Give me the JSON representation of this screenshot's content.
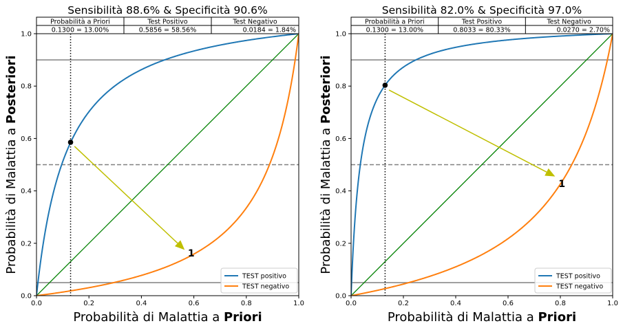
{
  "chart_data": [
    {
      "type": "line",
      "title": "Sensibilità 88.6%  &  Specificità 90.6%",
      "xlabel": {
        "prefix": "Probabilità di Malattia a ",
        "bold": "Priori"
      },
      "ylabel": {
        "prefix": "Probabilità di Malattia a ",
        "bold": "Posteriori"
      },
      "xlim": [
        0,
        1
      ],
      "ylim": [
        0,
        1
      ],
      "xticks": [
        "0.0",
        "0.2",
        "0.4",
        "0.6",
        "0.8",
        "1.0"
      ],
      "yticks": [
        "0.0",
        "0.2",
        "0.4",
        "0.6",
        "0.8",
        "1.0"
      ],
      "sensitivity": 0.886,
      "specificity": 0.906,
      "series": [
        {
          "name": "TEST positivo",
          "color": "#1f77b4"
        },
        {
          "name": "TEST negativo",
          "color": "#ff7f0e"
        }
      ],
      "diagonal_color": "#008000",
      "reference_lines": [
        {
          "y": 0.9,
          "style": "solid",
          "color": "#808080"
        },
        {
          "y": 0.5,
          "style": "dashed",
          "color": "#808080"
        },
        {
          "y": 0.05,
          "style": "solid",
          "color": "#808080"
        }
      ],
      "prior": 0.13,
      "point": {
        "x": 0.13,
        "y": 0.5856
      },
      "arrow": {
        "from": [
          0.145,
          0.57
        ],
        "to": [
          0.565,
          0.175
        ],
        "color": "#bfbf00",
        "label": "1",
        "label_at": [
          0.59,
          0.15
        ]
      },
      "legend_position": "lower-right",
      "table": {
        "headers": [
          "Probabilità a Priori",
          "Test Positivo",
          "Test Negativo"
        ],
        "values": [
          "0.1300 = 13.00%",
          "0.5856 = 58.56%",
          "0.0184 = 1.84%"
        ]
      }
    },
    {
      "type": "line",
      "title": "Sensibilità 82.0%  &  Specificità 97.0%",
      "xlabel": {
        "prefix": "Probabilità di Malattia a ",
        "bold": "Priori"
      },
      "ylabel": {
        "prefix": "Probabilità di Malattia a ",
        "bold": "Posteriori"
      },
      "xlim": [
        0,
        1
      ],
      "ylim": [
        0,
        1
      ],
      "xticks": [
        "0.0",
        "0.2",
        "0.4",
        "0.6",
        "0.8",
        "1.0"
      ],
      "yticks": [
        "0.0",
        "0.2",
        "0.4",
        "0.6",
        "0.8",
        "1.0"
      ],
      "sensitivity": 0.82,
      "specificity": 0.97,
      "series": [
        {
          "name": "TEST positivo",
          "color": "#1f77b4"
        },
        {
          "name": "TEST negativo",
          "color": "#ff7f0e"
        }
      ],
      "diagonal_color": "#008000",
      "reference_lines": [
        {
          "y": 0.9,
          "style": "solid",
          "color": "#808080"
        },
        {
          "y": 0.5,
          "style": "dashed",
          "color": "#808080"
        },
        {
          "y": 0.05,
          "style": "solid",
          "color": "#808080"
        }
      ],
      "prior": 0.13,
      "point": {
        "x": 0.13,
        "y": 0.8033
      },
      "arrow": {
        "from": [
          0.145,
          0.785
        ],
        "to": [
          0.78,
          0.455
        ],
        "color": "#bfbf00",
        "label": "1",
        "label_at": [
          0.806,
          0.415
        ]
      },
      "legend_position": "lower-right",
      "table": {
        "headers": [
          "Probabilità a Priori",
          "Test Positivo",
          "Test Negativo"
        ],
        "values": [
          "0.1300 = 13.00%",
          "0.8033 = 80.33%",
          "0.0270 = 2.70%"
        ]
      }
    }
  ]
}
